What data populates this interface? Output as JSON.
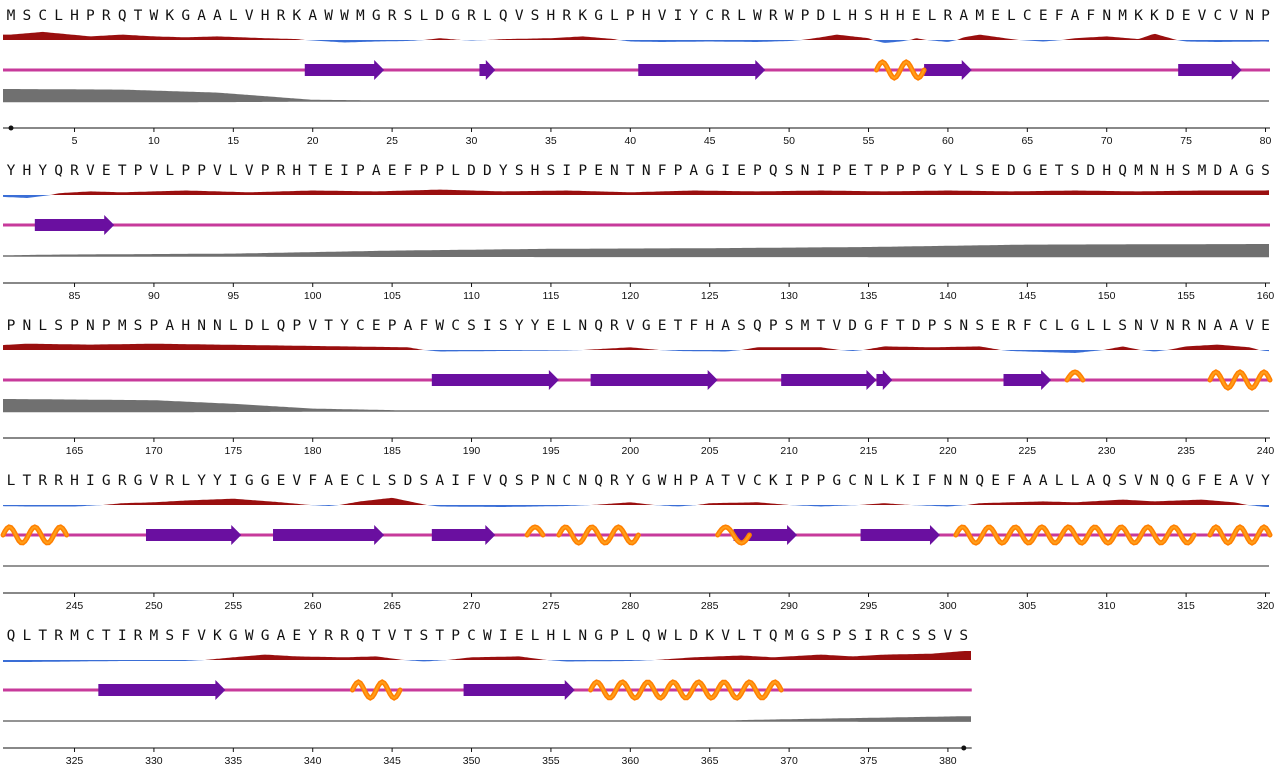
{
  "sequence": "MSCLHPRQTWKGAALVHRKAWWMGRSLDGRLQVSHRKGLPHVIYCRLWRWPDLHSHHELRAMELCEFAFNMKKDEVCVNPYHYQRVETPVLPPVLVPRHTEIPAEFPPLDDYSHSIPENTNFPAGIEPQSNIPETPPPGYLSEDGETSDHQMNHSMDAGSPNLSPNPMSPAHNNLDLQPVTYCEPAFWCSISYYELNQRVGETFHASQPSMTVDGFTDPSNSERFCLGLLSNVNRNAAVELTRRHIGRGVRLYYIGGEVFAECLSDSAIFVQSPNCNQRYGWHPATVCKIPPGCNLKIFNNQEFAALLAQSVNQGFEAVYQLTRMCTIRMSFVKGWGAEYRRQTVTSTPCWIELHLNGPLQWLDKVLTQMGSPSIRCSSVS",
  "residues_per_row": 80,
  "tick_step": 5,
  "colors": {
    "hydrophobic": "#9a0f0f",
    "hydrophilic": "#3a6ed6",
    "coil": "#c73a9b",
    "strand": "#6a0fa0",
    "helix_main": "#ff7f00",
    "helix_dark": "#ff9e1a",
    "disorder": "#707070",
    "axis": "#111111"
  },
  "strands": [
    [
      20,
      24
    ],
    [
      31,
      31
    ],
    [
      41,
      48
    ],
    [
      59,
      61
    ],
    [
      75,
      78
    ],
    [
      83,
      87
    ],
    [
      188,
      195
    ],
    [
      198,
      205
    ],
    [
      210,
      215
    ],
    [
      216,
      216
    ],
    [
      224,
      226
    ],
    [
      250,
      255
    ],
    [
      258,
      264
    ],
    [
      268,
      271
    ],
    [
      287,
      290
    ],
    [
      295,
      299
    ],
    [
      327,
      334
    ],
    [
      350,
      356
    ]
  ],
  "helices": [
    [
      56,
      58
    ],
    [
      228,
      228
    ],
    [
      237,
      244
    ],
    [
      274,
      274
    ],
    [
      276,
      280
    ],
    [
      286,
      287
    ],
    [
      301,
      315
    ],
    [
      317,
      320
    ],
    [
      343,
      345
    ],
    [
      358,
      369
    ]
  ],
  "hydrophobicity_profile": [
    [
      1,
      0.6
    ],
    [
      3,
      0.9
    ],
    [
      6,
      0.4
    ],
    [
      8,
      0.6
    ],
    [
      10,
      0.4
    ],
    [
      12,
      0.3
    ],
    [
      14,
      0.4
    ],
    [
      17,
      0.2
    ],
    [
      19,
      0.1
    ],
    [
      20,
      -0.1
    ],
    [
      22,
      -0.5
    ],
    [
      24,
      -0.3
    ],
    [
      26,
      -0.2
    ],
    [
      28,
      0.2
    ],
    [
      30,
      -0.1
    ],
    [
      32,
      0.1
    ],
    [
      35,
      0.2
    ],
    [
      37,
      0.4
    ],
    [
      39,
      0.1
    ],
    [
      40,
      -0.3
    ],
    [
      42,
      -0.4
    ],
    [
      45,
      -0.3
    ],
    [
      48,
      -0.4
    ],
    [
      50,
      -0.2
    ],
    [
      52,
      0.3
    ],
    [
      53,
      0.6
    ],
    [
      55,
      0.2
    ],
    [
      56,
      -0.6
    ],
    [
      57,
      -0.3
    ],
    [
      58,
      0.2
    ],
    [
      60,
      -0.4
    ],
    [
      61,
      0.3
    ],
    [
      62,
      0.6
    ],
    [
      64,
      0.1
    ],
    [
      66,
      -0.3
    ],
    [
      68,
      0.2
    ],
    [
      70,
      0.4
    ],
    [
      72,
      0.1
    ],
    [
      73,
      0.7
    ],
    [
      75,
      -0.3
    ],
    [
      77,
      -0.4
    ],
    [
      80,
      -0.3
    ],
    [
      82,
      -0.6
    ],
    [
      84,
      0.2
    ],
    [
      86,
      0.4
    ],
    [
      88,
      0.3
    ],
    [
      92,
      0.5
    ],
    [
      96,
      0.3
    ],
    [
      100,
      0.5
    ],
    [
      104,
      0.4
    ],
    [
      108,
      0.6
    ],
    [
      112,
      0.4
    ],
    [
      116,
      0.5
    ],
    [
      120,
      0.3
    ],
    [
      124,
      0.5
    ],
    [
      128,
      0.4
    ],
    [
      132,
      0.5
    ],
    [
      136,
      0.4
    ],
    [
      140,
      0.5
    ],
    [
      144,
      0.4
    ],
    [
      148,
      0.5
    ],
    [
      152,
      0.4
    ],
    [
      156,
      0.5
    ],
    [
      160,
      0.5
    ],
    [
      162,
      0.7
    ],
    [
      166,
      0.6
    ],
    [
      170,
      0.7
    ],
    [
      174,
      0.6
    ],
    [
      178,
      0.5
    ],
    [
      182,
      0.4
    ],
    [
      186,
      0.3
    ],
    [
      188,
      -0.3
    ],
    [
      192,
      -0.2
    ],
    [
      196,
      -0.1
    ],
    [
      200,
      0.3
    ],
    [
      203,
      -0.2
    ],
    [
      206,
      -0.3
    ],
    [
      208,
      0.3
    ],
    [
      212,
      0.3
    ],
    [
      214,
      -0.2
    ],
    [
      216,
      0.4
    ],
    [
      219,
      0.3
    ],
    [
      222,
      0.4
    ],
    [
      224,
      -0.2
    ],
    [
      228,
      -0.6
    ],
    [
      231,
      0.4
    ],
    [
      233,
      -0.3
    ],
    [
      235,
      0.4
    ],
    [
      237,
      0.6
    ],
    [
      239,
      0.3
    ],
    [
      240,
      -0.2
    ],
    [
      242,
      -0.3
    ],
    [
      245,
      -0.3
    ],
    [
      248,
      0.2
    ],
    [
      250,
      0.3
    ],
    [
      252,
      0.5
    ],
    [
      255,
      0.7
    ],
    [
      258,
      0.3
    ],
    [
      261,
      -0.2
    ],
    [
      263,
      0.4
    ],
    [
      265,
      0.8
    ],
    [
      268,
      -0.3
    ],
    [
      272,
      -0.4
    ],
    [
      276,
      -0.2
    ],
    [
      280,
      0.3
    ],
    [
      283,
      -0.3
    ],
    [
      285,
      0.2
    ],
    [
      288,
      0.3
    ],
    [
      292,
      -0.3
    ],
    [
      296,
      0.2
    ],
    [
      300,
      -0.3
    ],
    [
      302,
      0.2
    ],
    [
      306,
      0.4
    ],
    [
      308,
      0.3
    ],
    [
      311,
      0.6
    ],
    [
      313,
      0.4
    ],
    [
      316,
      0.6
    ],
    [
      318,
      0.3
    ],
    [
      320,
      -0.4
    ],
    [
      322,
      -0.4
    ],
    [
      325,
      -0.3
    ],
    [
      328,
      -0.2
    ],
    [
      332,
      -0.2
    ],
    [
      335,
      0.3
    ],
    [
      337,
      0.6
    ],
    [
      339,
      0.4
    ],
    [
      342,
      0.3
    ],
    [
      344,
      0.4
    ],
    [
      347,
      -0.3
    ],
    [
      350,
      0.3
    ],
    [
      353,
      0.4
    ],
    [
      356,
      -0.3
    ],
    [
      360,
      -0.2
    ],
    [
      364,
      0.3
    ],
    [
      367,
      0.5
    ],
    [
      369,
      0.3
    ],
    [
      372,
      0.6
    ],
    [
      374,
      0.4
    ],
    [
      376,
      0.6
    ],
    [
      379,
      0.7
    ],
    [
      381,
      1.0
    ]
  ],
  "disorder_profile": [
    [
      1,
      1.0
    ],
    [
      8,
      0.95
    ],
    [
      14,
      0.7
    ],
    [
      18,
      0.3
    ],
    [
      20,
      0.1
    ],
    [
      25,
      0.05
    ],
    [
      40,
      0.04
    ],
    [
      80,
      0.05
    ],
    [
      84,
      0.12
    ],
    [
      95,
      0.2
    ],
    [
      105,
      0.45
    ],
    [
      115,
      0.6
    ],
    [
      125,
      0.65
    ],
    [
      135,
      0.75
    ],
    [
      145,
      0.95
    ],
    [
      160,
      1.0
    ],
    [
      161,
      1.0
    ],
    [
      170,
      0.9
    ],
    [
      175,
      0.6
    ],
    [
      180,
      0.2
    ],
    [
      186,
      0.05
    ],
    [
      200,
      0.02
    ],
    [
      240,
      0.02
    ],
    [
      241,
      0.02
    ],
    [
      300,
      0.03
    ],
    [
      320,
      0.05
    ],
    [
      321,
      0.03
    ],
    [
      365,
      0.03
    ],
    [
      370,
      0.15
    ],
    [
      381,
      0.4
    ]
  ]
}
